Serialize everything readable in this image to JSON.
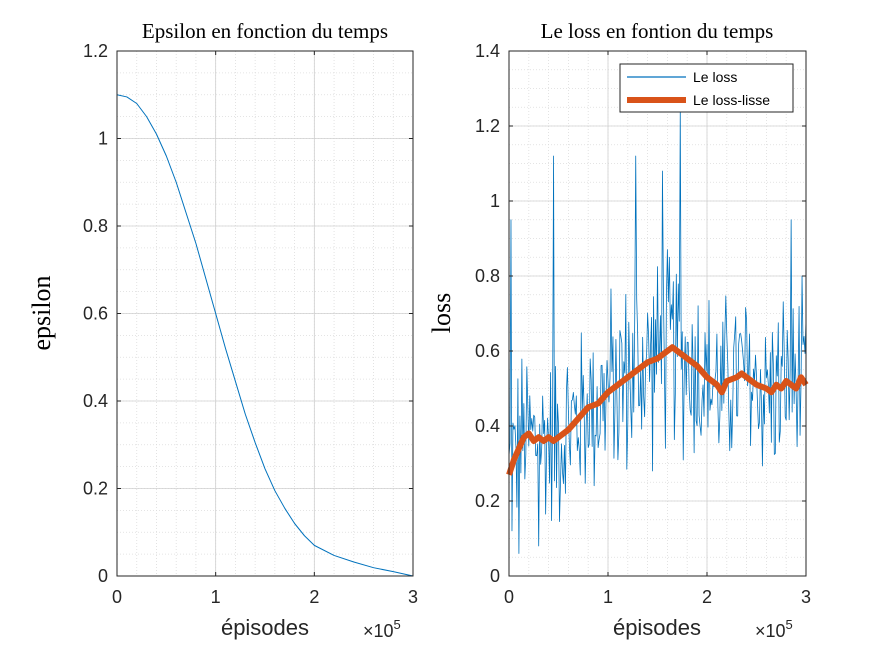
{
  "figure": {
    "background": "#ffffff",
    "axis_color": "#262626",
    "grid_color": "#dcdcdc"
  },
  "chart_data": [
    {
      "type": "line",
      "title": "Epsilon en fonction du temps",
      "xlabel": "épisodes",
      "ylabel": "epsilon",
      "x_exponent_base": "×10",
      "x_exponent_power": "5",
      "xlim": [
        0,
        3
      ],
      "ylim": [
        0,
        1.2
      ],
      "xticks": [
        0,
        1,
        2,
        3
      ],
      "yticks": [
        0,
        0.2,
        0.4,
        0.6,
        0.8,
        1,
        1.2
      ],
      "xtick_labels": [
        "0",
        "1",
        "2",
        "3"
      ],
      "ytick_labels": [
        "0",
        "0.2",
        "0.4",
        "0.6",
        "0.8",
        "1",
        "1.2"
      ],
      "grid": "major and minor",
      "series": [
        {
          "color": "#0072BD",
          "x": [
            0,
            0.1,
            0.2,
            0.3,
            0.4,
            0.5,
            0.6,
            0.7,
            0.8,
            0.9,
            1.0,
            1.1,
            1.2,
            1.3,
            1.4,
            1.5,
            1.6,
            1.7,
            1.8,
            1.9,
            2.0,
            2.2,
            2.4,
            2.6,
            2.8,
            3.0
          ],
          "y": [
            1.1,
            1.095,
            1.08,
            1.05,
            1.01,
            0.96,
            0.9,
            0.83,
            0.76,
            0.68,
            0.6,
            0.52,
            0.445,
            0.37,
            0.305,
            0.245,
            0.195,
            0.155,
            0.12,
            0.092,
            0.07,
            0.047,
            0.032,
            0.019,
            0.01,
            0.0
          ]
        }
      ]
    },
    {
      "type": "line",
      "title": "Le loss en fontion du temps",
      "xlabel": "épisodes",
      "ylabel": "loss",
      "x_exponent_base": "×10",
      "x_exponent_power": "5",
      "xlim": [
        0,
        3
      ],
      "ylim": [
        0,
        1.4
      ],
      "xticks": [
        0,
        1,
        2,
        3
      ],
      "yticks": [
        0,
        0.2,
        0.4,
        0.6,
        0.8,
        1,
        1.2,
        1.4
      ],
      "xtick_labels": [
        "0",
        "1",
        "2",
        "3"
      ],
      "ytick_labels": [
        "0",
        "0.2",
        "0.4",
        "0.6",
        "0.8",
        "1",
        "1.2",
        "1.4"
      ],
      "grid": "major and minor",
      "legend": {
        "placement": "top-right",
        "entries": [
          "Le loss",
          "Le loss-lisse"
        ]
      },
      "series": [
        {
          "name": "Le loss",
          "color": "#0072BD",
          "style": "noisy",
          "x_range": [
            0,
            3
          ],
          "x_step": 0.01,
          "amplitude": [
            0.22,
            0.25,
            0.22
          ],
          "peaks": [
            {
              "x": 0.45,
              "y": 1.12
            },
            {
              "x": 1.28,
              "y": 1.12
            },
            {
              "x": 1.55,
              "y": 1.08
            },
            {
              "x": 1.73,
              "y": 1.25
            },
            {
              "x": 2.85,
              "y": 0.95
            },
            {
              "x": 0.02,
              "y": 0.95
            },
            {
              "x": 0.1,
              "y": 0.06
            },
            {
              "x": 0.3,
              "y": 0.08
            }
          ]
        },
        {
          "name": "Le loss-lisse",
          "color": "#D95319",
          "x": [
            0,
            0.05,
            0.1,
            0.15,
            0.2,
            0.25,
            0.3,
            0.35,
            0.4,
            0.45,
            0.5,
            0.55,
            0.6,
            0.7,
            0.8,
            0.9,
            1.0,
            1.1,
            1.2,
            1.3,
            1.4,
            1.5,
            1.6,
            1.65,
            1.7,
            1.75,
            1.8,
            1.9,
            2.0,
            2.1,
            2.15,
            2.2,
            2.3,
            2.35,
            2.4,
            2.5,
            2.6,
            2.65,
            2.7,
            2.75,
            2.8,
            2.9,
            2.95,
            3.0
          ],
          "y": [
            0.27,
            0.31,
            0.34,
            0.37,
            0.38,
            0.36,
            0.37,
            0.36,
            0.37,
            0.36,
            0.37,
            0.38,
            0.39,
            0.42,
            0.45,
            0.46,
            0.49,
            0.51,
            0.53,
            0.55,
            0.57,
            0.58,
            0.6,
            0.61,
            0.6,
            0.59,
            0.58,
            0.56,
            0.53,
            0.51,
            0.49,
            0.52,
            0.53,
            0.54,
            0.53,
            0.51,
            0.5,
            0.49,
            0.51,
            0.5,
            0.52,
            0.5,
            0.53,
            0.51
          ]
        }
      ]
    }
  ]
}
